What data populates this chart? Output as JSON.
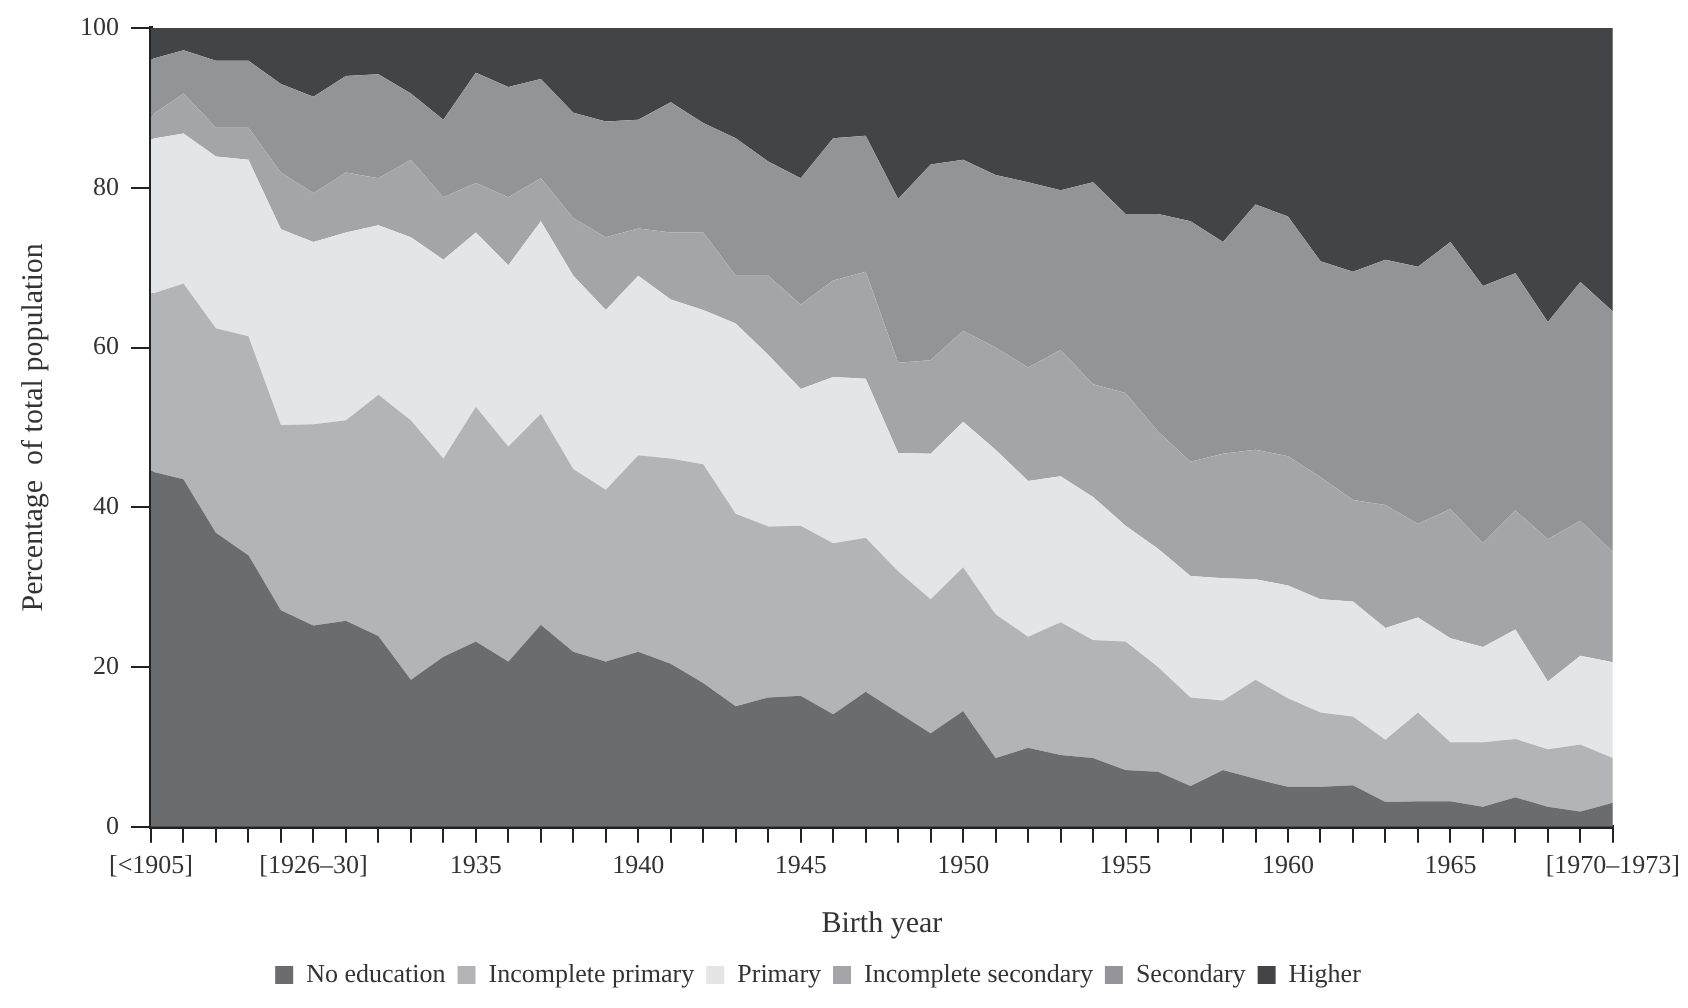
{
  "chart_data": {
    "type": "area",
    "stacked": true,
    "xlabel": "Birth year",
    "ylabel": "Percentage  of total population",
    "legend": "bottom",
    "categories": [
      "[<1905]",
      null,
      null,
      null,
      null,
      "[1926–30]",
      null,
      null,
      null,
      null,
      "1935",
      null,
      null,
      null,
      null,
      "1940",
      null,
      null,
      null,
      null,
      "1945",
      null,
      null,
      null,
      null,
      "1950",
      null,
      null,
      null,
      null,
      "1955",
      null,
      null,
      null,
      null,
      "1960",
      null,
      null,
      null,
      null,
      "1965",
      null,
      null,
      null,
      null,
      "[1970–1973]"
    ],
    "ylim": [
      0,
      100
    ],
    "yticks": [
      0,
      20,
      40,
      60,
      80,
      100
    ],
    "series": [
      {
        "name": "No education",
        "color": "#6b6c70",
        "values": [
          44.5,
          43.5,
          36.8,
          34.0,
          27.1,
          25.2,
          25.8,
          23.9,
          18.4,
          21.3,
          23.2,
          20.7,
          25.3,
          21.9,
          20.7,
          21.9,
          20.4,
          18.0,
          15.1,
          16.2,
          16.4,
          14.1,
          16.9,
          14.3,
          11.7,
          14.5,
          8.6,
          9.9,
          9.0,
          8.6,
          7.1,
          6.9,
          5.1,
          7.1,
          6.0,
          5.0,
          5.0,
          5.2,
          3.1,
          3.2,
          3.2,
          2.5,
          3.7,
          2.5,
          1.9,
          3.0
        ]
      },
      {
        "name": "Incomplete primary",
        "color": "#b3b4b7",
        "values": [
          22.2,
          24.5,
          25.6,
          27.4,
          23.2,
          25.2,
          25.1,
          30.2,
          32.5,
          24.8,
          29.4,
          26.9,
          26.4,
          22.9,
          21.5,
          24.6,
          25.7,
          27.4,
          24.1,
          21.4,
          21.3,
          21.4,
          19.3,
          17.7,
          16.8,
          18.0,
          18.0,
          13.9,
          16.6,
          14.8,
          16.1,
          13.1,
          11.1,
          8.7,
          12.4,
          11.1,
          9.3,
          8.6,
          7.8,
          11.1,
          7.4,
          8.1,
          7.3,
          7.2,
          8.4,
          5.6
        ]
      },
      {
        "name": "Primary",
        "color": "#e4e5e7",
        "values": [
          19.4,
          18.8,
          21.5,
          22.1,
          24.5,
          22.8,
          23.5,
          21.2,
          22.9,
          24.9,
          21.8,
          22.7,
          24.1,
          24.2,
          22.5,
          22.5,
          19.9,
          19.3,
          23.8,
          21.5,
          17.1,
          20.8,
          19.9,
          14.8,
          18.2,
          18.2,
          20.6,
          19.5,
          18.3,
          17.9,
          14.5,
          14.8,
          15.2,
          15.3,
          12.6,
          14.1,
          14.2,
          14.4,
          14.0,
          11.9,
          13.0,
          11.9,
          13.7,
          8.5,
          11.1,
          12.0
        ]
      },
      {
        "name": "Incomplete secondary",
        "color": "#a4a5a8",
        "values": [
          2.9,
          5.0,
          3.6,
          4.0,
          7.1,
          6.1,
          7.5,
          5.9,
          9.7,
          7.8,
          6.2,
          8.5,
          5.4,
          7.2,
          9.1,
          5.9,
          8.4,
          9.7,
          6.0,
          9.9,
          10.6,
          12.1,
          13.4,
          11.3,
          11.7,
          11.4,
          12.8,
          14.2,
          15.8,
          14.1,
          16.6,
          14.7,
          14.3,
          15.6,
          16.2,
          16.2,
          15.3,
          12.7,
          15.4,
          11.7,
          16.2,
          13.0,
          14.9,
          17.8,
          16.9,
          13.8
        ]
      },
      {
        "name": "Secondary",
        "color": "#939497",
        "values": [
          7.1,
          5.4,
          8.4,
          8.4,
          11.1,
          12.1,
          12.1,
          13.0,
          8.3,
          9.7,
          13.8,
          13.8,
          12.4,
          13.2,
          14.5,
          13.6,
          16.3,
          13.7,
          17.2,
          14.3,
          15.8,
          17.8,
          17.0,
          20.5,
          24.5,
          21.4,
          21.6,
          23.2,
          20.0,
          25.3,
          22.4,
          27.2,
          30.1,
          26.5,
          30.7,
          30.0,
          27.0,
          28.6,
          30.7,
          32.2,
          33.4,
          32.2,
          29.7,
          27.2,
          29.9,
          30.1
        ]
      },
      {
        "name": "Higher",
        "color": "#434447",
        "values": [
          3.9,
          2.8,
          4.1,
          4.1,
          7.0,
          8.6,
          6.0,
          5.8,
          8.2,
          11.5,
          5.6,
          7.4,
          6.4,
          10.6,
          11.7,
          11.5,
          9.3,
          11.9,
          13.8,
          16.7,
          18.8,
          13.8,
          13.5,
          21.4,
          17.1,
          16.5,
          18.4,
          19.3,
          20.3,
          19.3,
          23.3,
          23.3,
          24.2,
          26.8,
          22.1,
          23.6,
          29.2,
          30.5,
          29.0,
          29.9,
          26.8,
          32.3,
          30.7,
          36.8,
          31.8,
          35.5
        ]
      }
    ]
  }
}
